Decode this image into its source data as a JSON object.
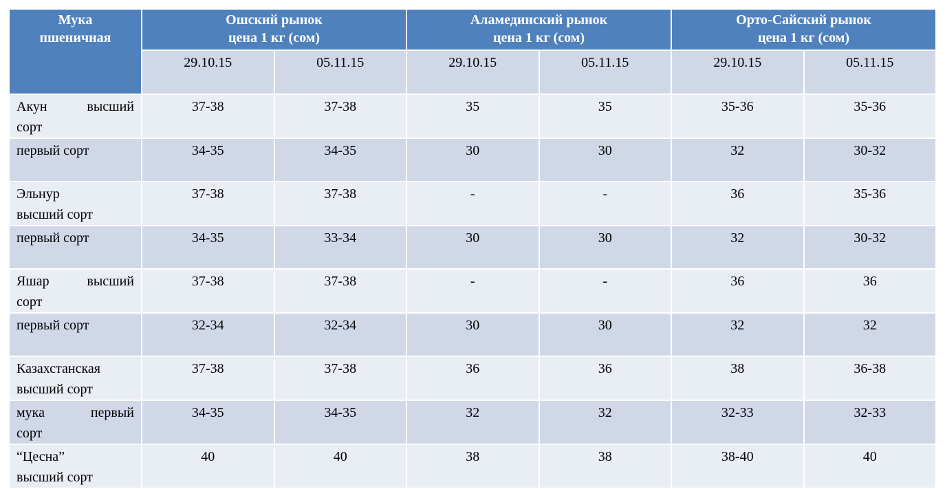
{
  "table": {
    "corner": [
      "Мука",
      "пшеничная"
    ],
    "markets": [
      {
        "name": "Ошский рынок",
        "unit": "цена 1 кг (сом)"
      },
      {
        "name": "Аламединский рынок",
        "unit": "цена 1 кг (сом)"
      },
      {
        "name": "Орто-Сайский рынок",
        "unit": "цена 1 кг (сом)"
      }
    ],
    "dates": [
      "29.10.15",
      "05.11.15",
      "29.10.15",
      "05.11.15",
      "29.10.15",
      "05.11.15"
    ],
    "rows": [
      {
        "label": [
          "Акун высший",
          "сорт"
        ],
        "values": [
          "37-38",
          "37-38",
          "35",
          "35",
          "35-36",
          "35-36"
        ]
      },
      {
        "label": [
          "первый сорт"
        ],
        "values": [
          "34-35",
          "34-35",
          "30",
          "30",
          "32",
          "30-32"
        ]
      },
      {
        "label": [
          "Эльнур",
          "высший сорт"
        ],
        "values": [
          "37-38",
          "37-38",
          "-",
          "-",
          "36",
          "35-36"
        ]
      },
      {
        "label": [
          "первый сорт"
        ],
        "values": [
          "34-35",
          "33-34",
          "30",
          "30",
          "32",
          "30-32"
        ]
      },
      {
        "label": [
          "Яшар высший",
          "сорт"
        ],
        "values": [
          "37-38",
          "37-38",
          "-",
          "-",
          "36",
          "36"
        ]
      },
      {
        "label": [
          "первый сорт"
        ],
        "values": [
          "32-34",
          "32-34",
          "30",
          "30",
          "32",
          "32"
        ]
      },
      {
        "label": [
          "Казахстанская",
          "высший сорт"
        ],
        "values": [
          "37-38",
          "37-38",
          "36",
          "36",
          "38",
          "36-38"
        ]
      },
      {
        "label": [
          "мука первый",
          "сорт"
        ],
        "values": [
          "34-35",
          "34-35",
          "32",
          "32",
          "32-33",
          "32-33"
        ]
      },
      {
        "label": [
          "“Цесна”",
          "высший сорт"
        ],
        "values": [
          "40",
          "40",
          "38",
          "38",
          "38-40",
          "40"
        ]
      }
    ]
  }
}
